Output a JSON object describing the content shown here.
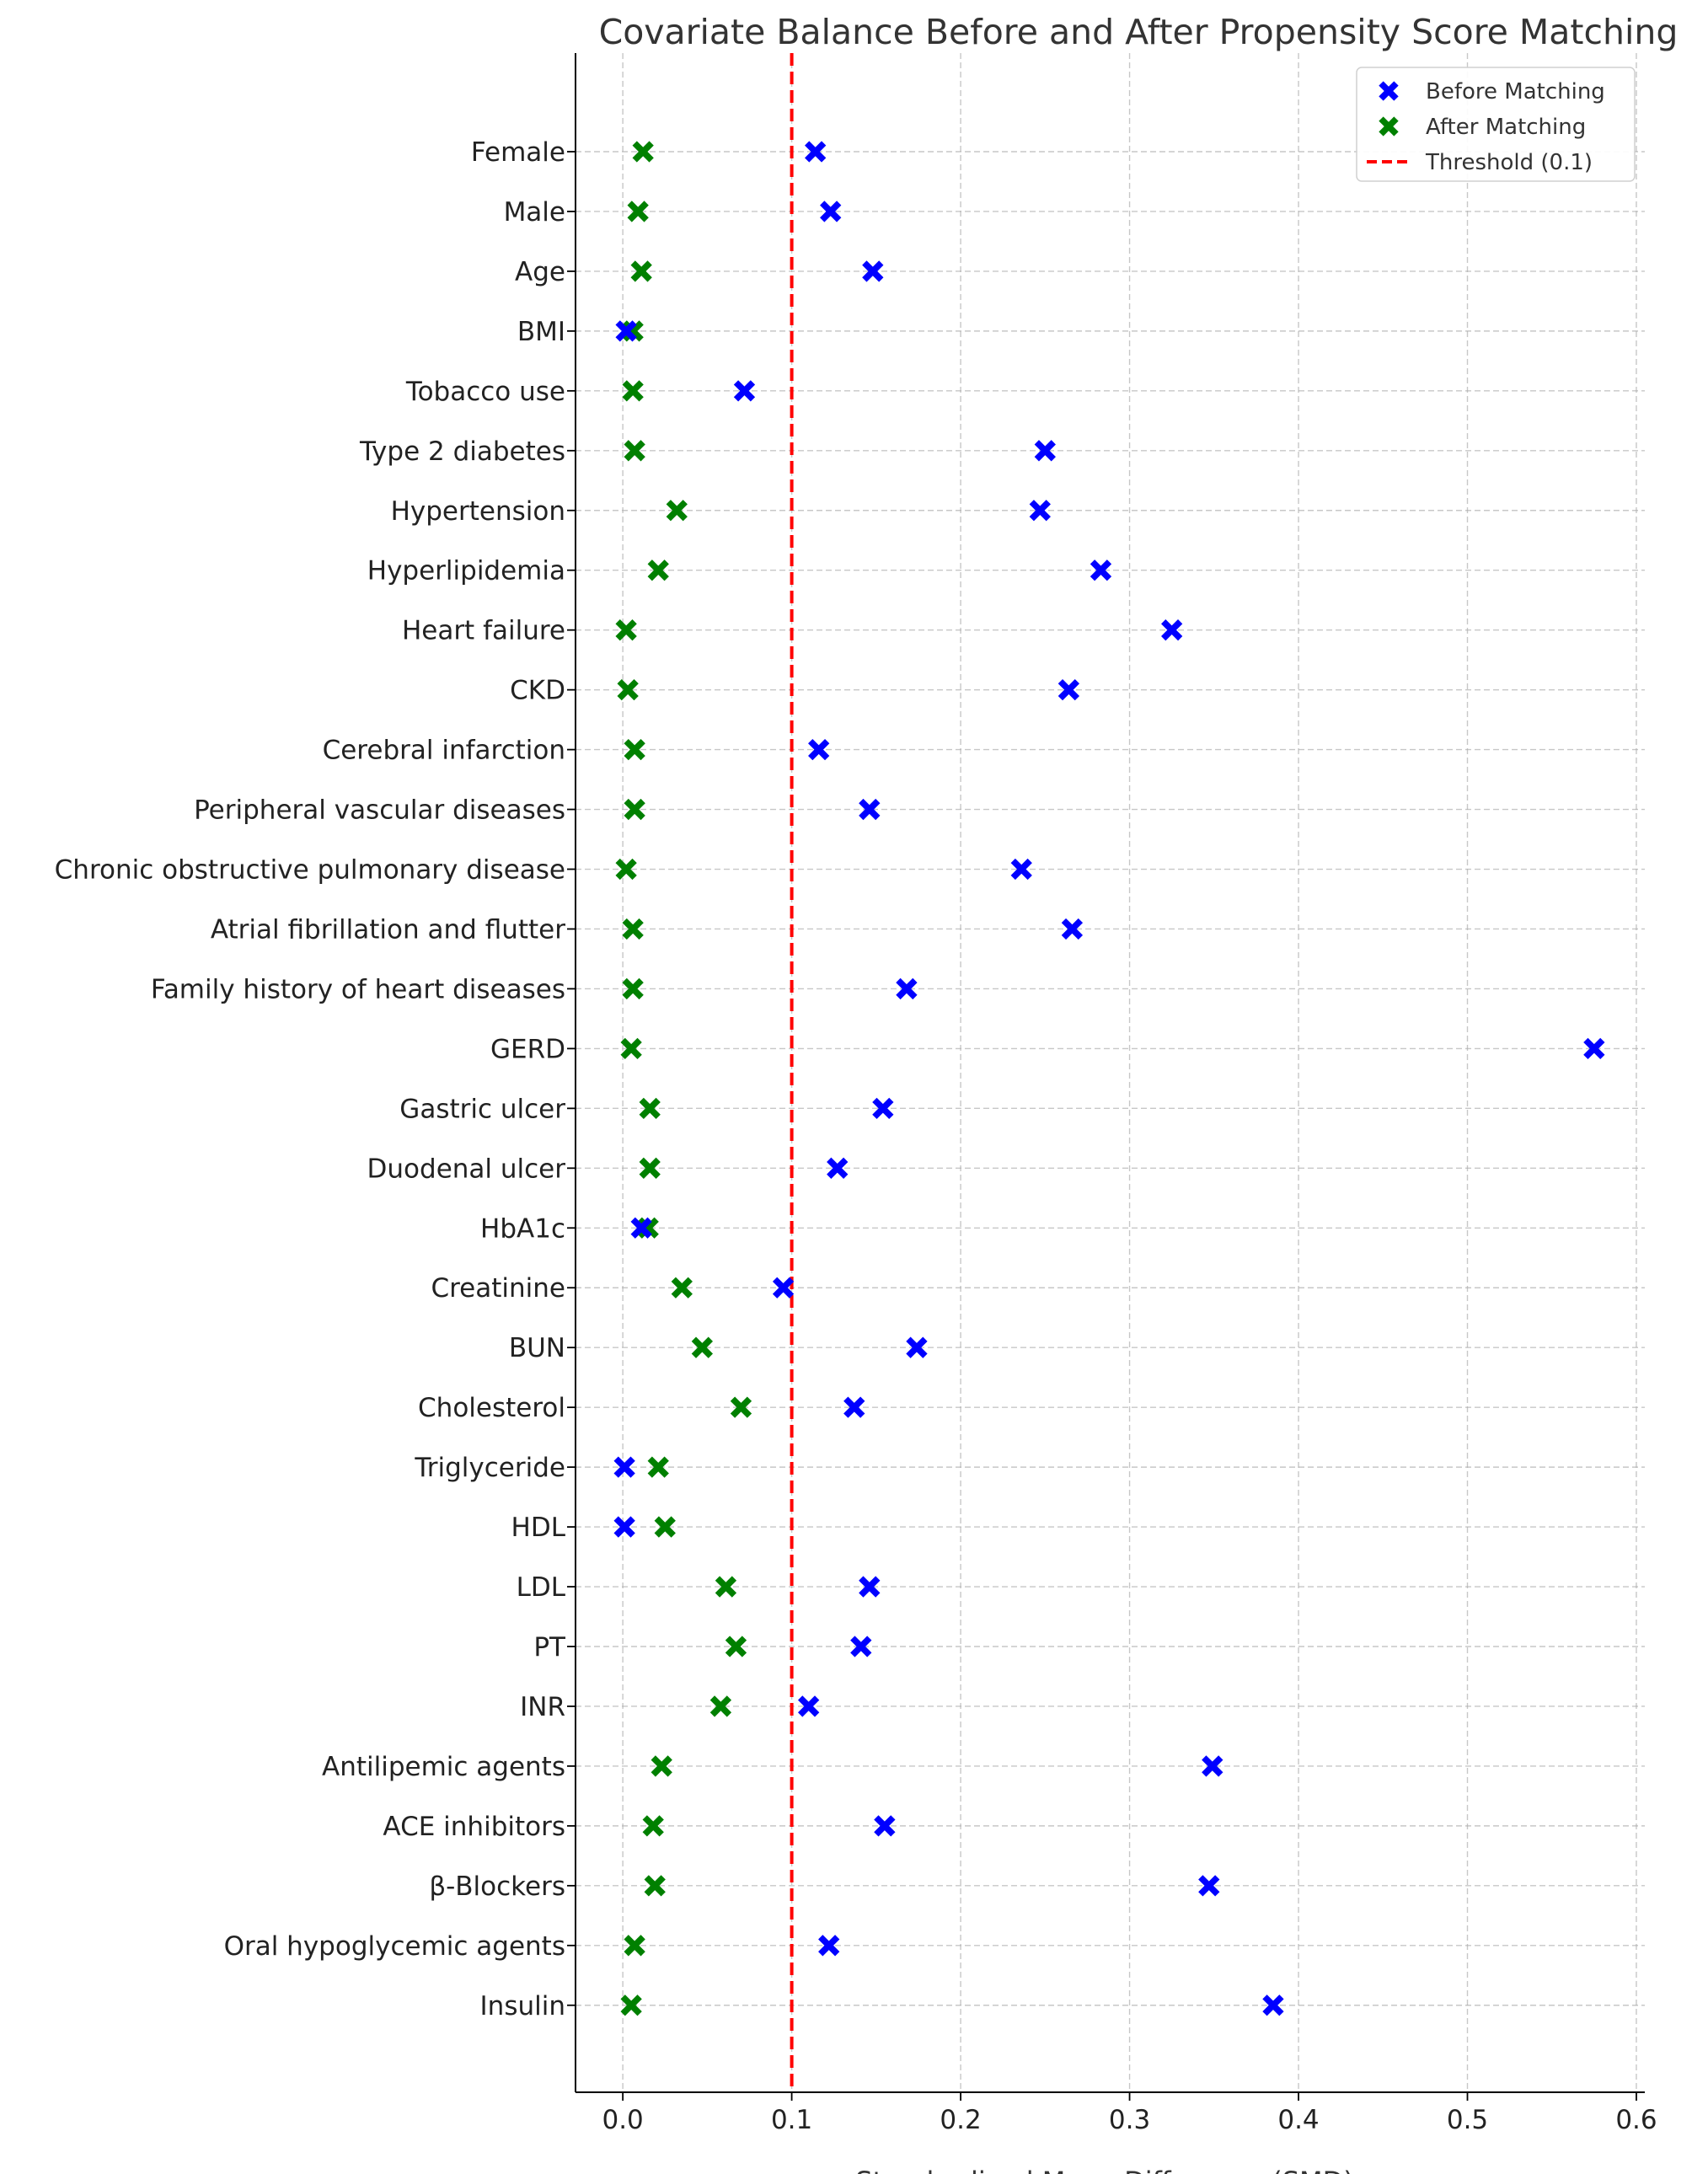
{
  "chart_data": {
    "type": "scatter",
    "title": "Covariate Balance Before and After Propensity Score Matching",
    "xlabel": "Standardized Mean Difference (SMD)",
    "ylabel": "",
    "xlim": [
      -0.028,
      0.605
    ],
    "x_ticks": [
      0.0,
      0.1,
      0.2,
      0.3,
      0.4,
      0.5,
      0.6
    ],
    "x_tick_labels": [
      "0.0",
      "0.1",
      "0.2",
      "0.3",
      "0.4",
      "0.5",
      "0.6"
    ],
    "grid": true,
    "legend_position": "top-right",
    "categories": [
      "Female",
      "Male",
      "Age",
      "BMI",
      "Tobacco use",
      "Type 2 diabetes",
      "Hypertension",
      "Hyperlipidemia",
      "Heart failure",
      "CKD",
      "Cerebral infarction",
      "Peripheral vascular diseases",
      "Chronic obstructive pulmonary disease",
      "Atrial fibrillation and flutter",
      "Family history of heart diseases",
      "GERD",
      "Gastric ulcer",
      "Duodenal ulcer",
      "HbA1c",
      "Creatinine",
      "BUN",
      "Cholesterol",
      "Triglyceride",
      "HDL",
      "LDL",
      "PT",
      "INR",
      "Antilipemic agents",
      "ACE inhibitors",
      "β-Blockers",
      "Oral hypoglycemic agents",
      "Insulin"
    ],
    "series": [
      {
        "name": "Before Matching",
        "color": "#0000ff",
        "marker": "x-filled",
        "values": [
          0.114,
          0.123,
          0.148,
          0.002,
          0.072,
          0.25,
          0.247,
          0.283,
          0.325,
          0.264,
          0.116,
          0.146,
          0.236,
          0.266,
          0.168,
          0.575,
          0.154,
          0.127,
          0.011,
          0.095,
          0.174,
          0.137,
          0.001,
          0.001,
          0.146,
          0.141,
          0.11,
          0.349,
          0.155,
          0.347,
          0.122,
          0.385
        ]
      },
      {
        "name": "After Matching",
        "color": "#008000",
        "marker": "x-filled",
        "values": [
          0.012,
          0.009,
          0.011,
          0.006,
          0.006,
          0.007,
          0.032,
          0.021,
          0.002,
          0.003,
          0.007,
          0.007,
          0.002,
          0.006,
          0.006,
          0.005,
          0.016,
          0.016,
          0.015,
          0.035,
          0.047,
          0.07,
          0.021,
          0.025,
          0.061,
          0.067,
          0.058,
          0.023,
          0.018,
          0.019,
          0.007,
          0.005
        ]
      }
    ],
    "threshold": {
      "name": "Threshold (0.1)",
      "value": 0.1,
      "color": "#ff0000",
      "style": "dashed"
    }
  }
}
